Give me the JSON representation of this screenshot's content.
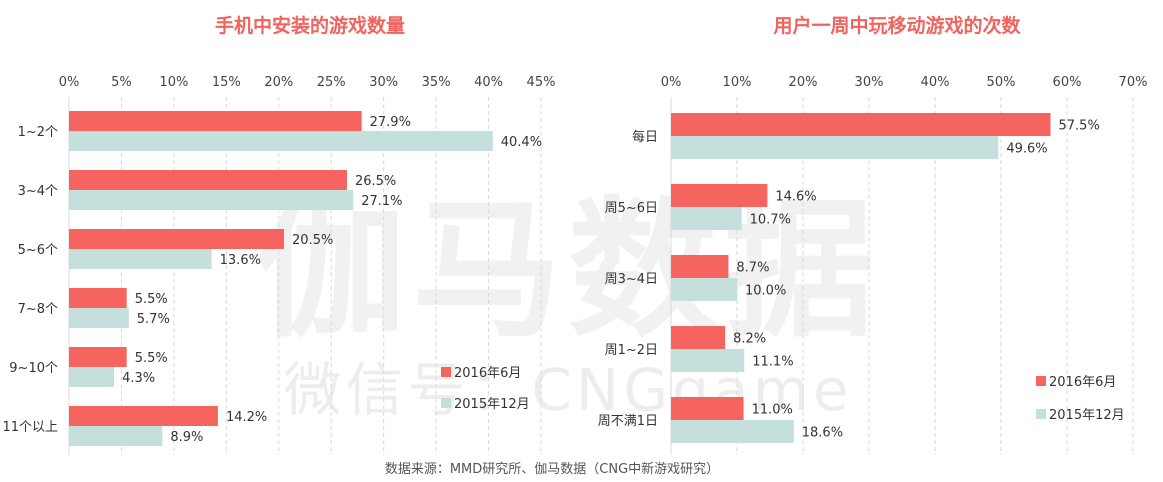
{
  "colors": {
    "series_2016": "#f5645f",
    "series_2015": "#c5dfdc",
    "title": "#f0635e",
    "grid": "#d9d9d9"
  },
  "watermark": {
    "main": "伽马数据",
    "sub": "微信号：CNGgame"
  },
  "source": "数据来源：MMD研究所、伽马数据（CNG中新游戏研究）",
  "chart_data": [
    {
      "type": "bar",
      "orientation": "horizontal",
      "title": "手机中安装的游戏数量",
      "categories": [
        "1~2个",
        "3~4个",
        "5~6个",
        "7~8个",
        "9~10个",
        "11个以上"
      ],
      "xlim": [
        0,
        45
      ],
      "xticks": [
        "0%",
        "5%",
        "10%",
        "15%",
        "20%",
        "25%",
        "30%",
        "35%",
        "40%",
        "45%"
      ],
      "grid": true,
      "legend_position": "bottom-right",
      "series": [
        {
          "name": "2016年6月",
          "values": [
            27.9,
            26.5,
            20.5,
            5.5,
            5.5,
            14.2
          ],
          "labels": [
            "27.9%",
            "26.5%",
            "20.5%",
            "5.5%",
            "5.5%",
            "14.2%"
          ]
        },
        {
          "name": "2015年12月",
          "values": [
            40.4,
            27.1,
            13.6,
            5.7,
            4.3,
            8.9
          ],
          "labels": [
            "40.4%",
            "27.1%",
            "13.6%",
            "5.7%",
            "4.3%",
            "8.9%"
          ]
        }
      ]
    },
    {
      "type": "bar",
      "orientation": "horizontal",
      "title": "用户一周中玩移动游戏的次数",
      "categories": [
        "每日",
        "周5~6日",
        "周3~4日",
        "周1~2日",
        "周不满1日"
      ],
      "xlim": [
        0,
        70
      ],
      "xticks": [
        "0%",
        "10%",
        "20%",
        "30%",
        "40%",
        "50%",
        "60%",
        "70%"
      ],
      "grid": true,
      "legend_position": "bottom-right",
      "series": [
        {
          "name": "2016年6月",
          "values": [
            57.5,
            14.6,
            8.7,
            8.2,
            11.0
          ],
          "labels": [
            "57.5%",
            "14.6%",
            "8.7%",
            "8.2%",
            "11.0%"
          ]
        },
        {
          "name": "2015年12月",
          "values": [
            49.6,
            10.7,
            10.0,
            11.1,
            18.6
          ],
          "labels": [
            "49.6%",
            "10.7%",
            "10.0%",
            "11.1%",
            "18.6%"
          ]
        }
      ]
    }
  ]
}
